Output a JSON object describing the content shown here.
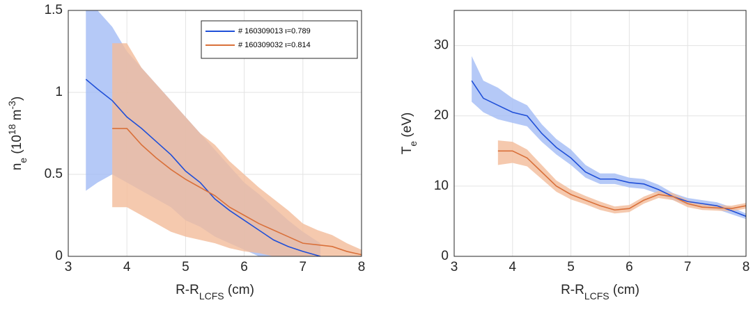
{
  "chart_data": [
    {
      "type": "line",
      "xlim": [
        3,
        8
      ],
      "ylim": [
        0,
        1.5
      ],
      "xticks": [
        3,
        4,
        5,
        6,
        7,
        8
      ],
      "yticks": [
        0,
        0.5,
        1,
        1.5
      ],
      "grid": true,
      "legend": "top-right",
      "xlabel": [
        {
          "text": "R-R"
        },
        {
          "text": "LCFS",
          "sub": true
        },
        {
          "text": " (cm)"
        }
      ],
      "ylabel": [
        {
          "text": "n"
        },
        {
          "text": "e",
          "sub": true
        },
        {
          "text": " (10"
        },
        {
          "text": "18",
          "sup": true
        },
        {
          "text": " m"
        },
        {
          "text": "-3",
          "sup": true
        },
        {
          "text": ")"
        }
      ],
      "series": [
        {
          "name": "# 160309013 ι=0.789",
          "color": "#1f4fd8",
          "band_color": "#a3bbf5",
          "x": [
            3.3,
            3.5,
            3.75,
            4.0,
            4.25,
            4.5,
            4.75,
            5.0,
            5.25,
            5.5,
            5.75,
            6.0,
            6.25,
            6.5,
            6.75,
            7.0,
            7.3
          ],
          "values": [
            1.08,
            1.02,
            0.95,
            0.85,
            0.78,
            0.7,
            0.62,
            0.52,
            0.45,
            0.35,
            0.28,
            0.22,
            0.16,
            0.1,
            0.06,
            0.03,
            0.0
          ],
          "band_low": [
            0.4,
            0.45,
            0.5,
            0.45,
            0.4,
            0.35,
            0.3,
            0.22,
            0.18,
            0.12,
            0.08,
            0.04,
            0.0,
            0.0,
            0.0,
            0.0,
            0.0
          ],
          "band_high": [
            1.5,
            1.5,
            1.4,
            1.25,
            1.15,
            1.05,
            0.95,
            0.85,
            0.75,
            0.65,
            0.55,
            0.45,
            0.38,
            0.3,
            0.22,
            0.15,
            0.08
          ]
        },
        {
          "name": "# 160309032 ι=0.814",
          "color": "#d9703a",
          "band_color": "#f3bc9a",
          "x": [
            3.75,
            4.0,
            4.25,
            4.5,
            4.75,
            5.0,
            5.25,
            5.5,
            5.75,
            6.0,
            6.25,
            6.5,
            6.75,
            7.0,
            7.25,
            7.5,
            7.75,
            8.0
          ],
          "values": [
            0.78,
            0.78,
            0.68,
            0.6,
            0.53,
            0.47,
            0.42,
            0.37,
            0.3,
            0.25,
            0.2,
            0.16,
            0.12,
            0.08,
            0.07,
            0.06,
            0.03,
            0.01
          ],
          "band_low": [
            0.3,
            0.3,
            0.25,
            0.2,
            0.15,
            0.12,
            0.1,
            0.08,
            0.05,
            0.03,
            0.02,
            0.0,
            0.0,
            0.0,
            0.0,
            0.0,
            0.0,
            0.0
          ],
          "band_high": [
            1.3,
            1.3,
            1.15,
            1.05,
            0.95,
            0.85,
            0.75,
            0.68,
            0.58,
            0.5,
            0.42,
            0.35,
            0.28,
            0.2,
            0.16,
            0.13,
            0.08,
            0.04
          ]
        }
      ]
    },
    {
      "type": "line",
      "xlim": [
        3,
        8
      ],
      "ylim": [
        0,
        35
      ],
      "xticks": [
        3,
        4,
        5,
        6,
        7,
        8
      ],
      "yticks": [
        0,
        10,
        20,
        30
      ],
      "grid": true,
      "xlabel": [
        {
          "text": "R-R"
        },
        {
          "text": "LCFS",
          "sub": true
        },
        {
          "text": " (cm)"
        }
      ],
      "ylabel": [
        {
          "text": "T"
        },
        {
          "text": "e",
          "sub": true
        },
        {
          "text": " (eV)"
        }
      ],
      "series": [
        {
          "color": "#1f4fd8",
          "band_color": "#a3bbf5",
          "x": [
            3.3,
            3.5,
            3.75,
            4.0,
            4.25,
            4.5,
            4.75,
            5.0,
            5.25,
            5.5,
            5.75,
            6.0,
            6.25,
            6.5,
            6.75,
            7.0,
            7.25,
            7.5,
            7.75,
            8.0
          ],
          "values": [
            25,
            22.5,
            21.5,
            20.5,
            20,
            17.5,
            15.5,
            14,
            12,
            11,
            11,
            10.5,
            10.3,
            9.5,
            8.5,
            7.8,
            7.5,
            7.2,
            6.5,
            5.7
          ],
          "band_low": [
            22,
            20.5,
            19.5,
            19,
            18.5,
            16.3,
            14.5,
            13,
            11.2,
            10.3,
            10.3,
            9.8,
            9.6,
            8.9,
            8,
            7.3,
            7,
            6.7,
            6,
            5.3
          ],
          "band_high": [
            28.5,
            25,
            24,
            22.5,
            21.5,
            18.8,
            16.7,
            15.2,
            13,
            11.8,
            11.8,
            11.2,
            11,
            10.2,
            9,
            8.3,
            8,
            7.7,
            7,
            6.1
          ]
        },
        {
          "color": "#d9703a",
          "band_color": "#f3bc9a",
          "x": [
            3.75,
            4.0,
            4.25,
            4.5,
            4.75,
            5.0,
            5.25,
            5.5,
            5.75,
            6.0,
            6.25,
            6.5,
            6.75,
            7.0,
            7.25,
            7.5,
            7.75,
            8.0
          ],
          "values": [
            15,
            15,
            14,
            12,
            10,
            8.8,
            8,
            7.2,
            6.6,
            6.8,
            8,
            8.8,
            8.5,
            7.5,
            7,
            6.9,
            6.8,
            7.2
          ],
          "band_low": [
            13,
            13.3,
            12.8,
            11,
            9.2,
            8.1,
            7.4,
            6.6,
            6.1,
            6.3,
            7.5,
            8.3,
            8,
            7,
            6.6,
            6.5,
            6.4,
            6.8
          ],
          "band_high": [
            16.5,
            16.3,
            15.2,
            13,
            10.8,
            9.5,
            8.6,
            7.8,
            7.1,
            7.3,
            8.5,
            9.3,
            9,
            8,
            7.4,
            7.3,
            7.2,
            7.6
          ]
        }
      ]
    }
  ]
}
